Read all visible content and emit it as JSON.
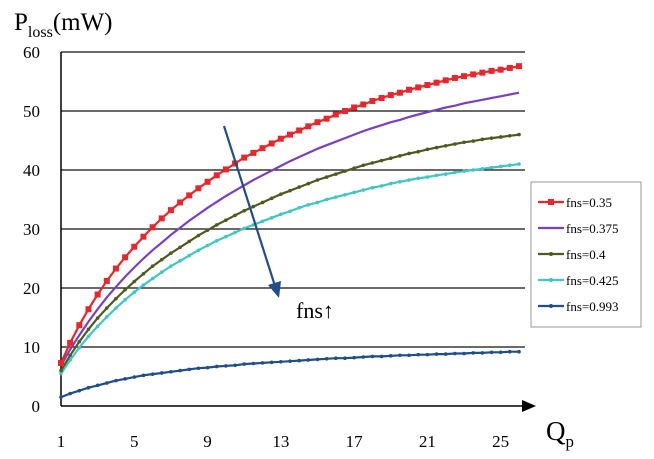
{
  "chart_data": {
    "type": "line",
    "ylabel_main": "P",
    "ylabel_sub": "loss",
    "ylabel_unit": "(mW)",
    "xlabel_main": "Q",
    "xlabel_sub": "p",
    "xlim": [
      1,
      26
    ],
    "ylim": [
      0,
      60
    ],
    "x_ticks": [
      1,
      5,
      9,
      13,
      17,
      21,
      25
    ],
    "y_ticks": [
      0,
      10,
      20,
      30,
      40,
      50,
      60
    ],
    "grid": "horizontal",
    "legend_position": "right",
    "annotation": "fns↑",
    "x": [
      1,
      1.5,
      2,
      2.5,
      3,
      3.5,
      4,
      4.5,
      5,
      5.5,
      6,
      6.5,
      7,
      7.5,
      8,
      8.5,
      9,
      9.5,
      10,
      10.5,
      11,
      11.5,
      12,
      12.5,
      13,
      13.5,
      14,
      14.5,
      15,
      15.5,
      16,
      16.5,
      17,
      17.5,
      18,
      18.5,
      19,
      19.5,
      20,
      20.5,
      21,
      21.5,
      22,
      22.5,
      23,
      23.5,
      24,
      24.5,
      25,
      25.5,
      26
    ],
    "series": [
      {
        "name": "fns=0.35",
        "color": "#e8262b",
        "marker": "square",
        "values": [
          7.3,
          10.7,
          13.7,
          16.4,
          18.9,
          21.2,
          23.3,
          25.2,
          27.0,
          28.7,
          30.3,
          31.8,
          33.2,
          34.5,
          35.7,
          36.9,
          38.0,
          39.1,
          40.1,
          41.1,
          42.1,
          42.9,
          43.7,
          44.5,
          45.3,
          46.0,
          46.7,
          47.4,
          48.1,
          48.7,
          49.4,
          50.0,
          50.6,
          51.1,
          51.7,
          52.2,
          52.7,
          53.1,
          53.6,
          54.0,
          54.4,
          54.8,
          55.2,
          55.6,
          55.9,
          56.2,
          56.5,
          56.8,
          57.0,
          57.3,
          57.6
        ]
      },
      {
        "name": "fns=0.375",
        "color": "#7b3fc4",
        "marker": "none",
        "values": [
          6.8,
          9.6,
          12.0,
          14.3,
          16.4,
          18.4,
          20.2,
          21.9,
          23.5,
          25.0,
          26.4,
          27.7,
          29.0,
          30.2,
          31.4,
          32.5,
          33.6,
          34.6,
          35.6,
          36.5,
          37.4,
          38.3,
          39.1,
          39.9,
          40.7,
          41.5,
          42.2,
          42.9,
          43.6,
          44.2,
          44.8,
          45.4,
          46.0,
          46.6,
          47.1,
          47.6,
          48.1,
          48.5,
          49.0,
          49.4,
          49.8,
          50.2,
          50.6,
          50.9,
          51.3,
          51.6,
          51.9,
          52.2,
          52.5,
          52.8,
          53.1
        ]
      },
      {
        "name": "fns=0.4",
        "color": "#4e5a1e",
        "marker": "dot",
        "values": [
          6.0,
          8.6,
          10.9,
          13.0,
          14.9,
          16.6,
          18.2,
          19.7,
          21.1,
          22.4,
          23.7,
          24.8,
          25.9,
          26.9,
          27.9,
          28.9,
          29.8,
          30.7,
          31.5,
          32.3,
          33.1,
          33.8,
          34.5,
          35.2,
          35.9,
          36.5,
          37.1,
          37.7,
          38.3,
          38.8,
          39.3,
          39.8,
          40.3,
          40.8,
          41.2,
          41.6,
          42.0,
          42.4,
          42.8,
          43.1,
          43.5,
          43.8,
          44.1,
          44.4,
          44.7,
          44.9,
          45.2,
          45.4,
          45.6,
          45.8,
          46.0
        ]
      },
      {
        "name": "fns=0.425",
        "color": "#3ec7c2",
        "marker": "dot",
        "values": [
          5.5,
          7.8,
          9.9,
          11.8,
          13.5,
          15.1,
          16.6,
          18.0,
          19.3,
          20.5,
          21.6,
          22.7,
          23.7,
          24.6,
          25.5,
          26.4,
          27.2,
          28.0,
          28.7,
          29.4,
          30.1,
          30.7,
          31.3,
          31.9,
          32.5,
          33.0,
          33.6,
          34.1,
          34.5,
          35.0,
          35.4,
          35.8,
          36.2,
          36.6,
          37.0,
          37.3,
          37.7,
          38.0,
          38.3,
          38.6,
          38.8,
          39.1,
          39.3,
          39.6,
          39.8,
          40.0,
          40.2,
          40.4,
          40.6,
          40.8,
          41.0
        ]
      },
      {
        "name": "fns=0.993",
        "color": "#1f4e8a",
        "marker": "dot",
        "values": [
          1.5,
          2.1,
          2.6,
          3.1,
          3.5,
          3.9,
          4.3,
          4.6,
          4.9,
          5.2,
          5.4,
          5.6,
          5.8,
          6.0,
          6.2,
          6.4,
          6.5,
          6.7,
          6.8,
          6.9,
          7.1,
          7.2,
          7.3,
          7.4,
          7.5,
          7.6,
          7.7,
          7.8,
          7.9,
          8.0,
          8.1,
          8.1,
          8.2,
          8.3,
          8.4,
          8.4,
          8.5,
          8.6,
          8.6,
          8.7,
          8.7,
          8.8,
          8.8,
          8.9,
          8.9,
          9.0,
          9.0,
          9.1,
          9.1,
          9.2,
          9.2
        ]
      }
    ]
  }
}
